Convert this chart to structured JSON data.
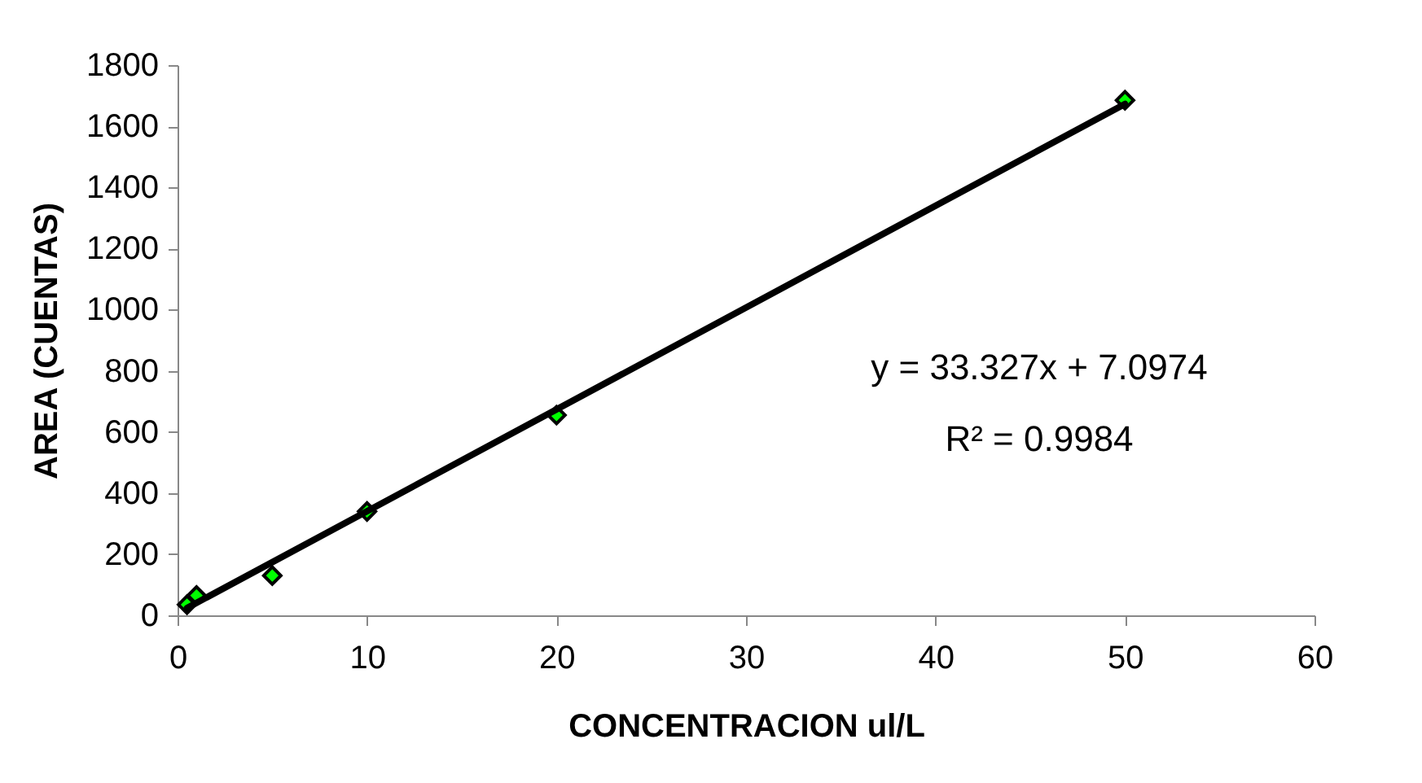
{
  "chart_data": {
    "type": "scatter",
    "xlabel": "CONCENTRACION ul/L",
    "ylabel": "AREA (CUENTAS)",
    "xlim": [
      0,
      60
    ],
    "xticks": [
      0,
      10,
      20,
      30,
      40,
      50,
      60
    ],
    "ylim": [
      0,
      1800
    ],
    "yticks": [
      0,
      200,
      400,
      600,
      800,
      1000,
      1200,
      1400,
      1600,
      1800
    ],
    "grid": false,
    "marker": "diamond",
    "series": [
      {
        "color": "#00ff00",
        "x": [
          0.5,
          1,
          5,
          10,
          20,
          50
        ],
        "values": [
          35,
          65,
          130,
          340,
          655,
          1685
        ]
      },
      {
        "type": "line",
        "color": "#000000",
        "x": [
          0.5,
          50
        ],
        "values": [
          24,
          1673
        ],
        "marker": "none"
      }
    ],
    "annotations": [
      "y = 33.327x + 7.0974",
      "R² = 0.9984"
    ]
  }
}
